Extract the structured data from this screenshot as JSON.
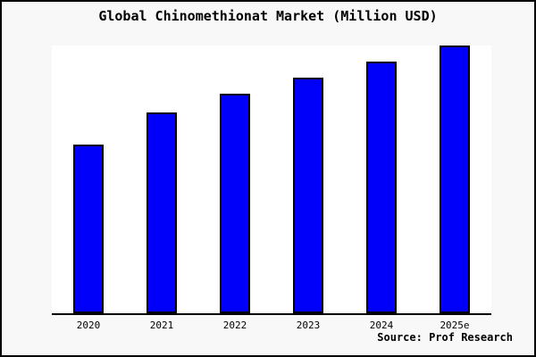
{
  "chart_data": {
    "type": "bar",
    "title": "Global Chinomethionat Market (Million USD)",
    "categories": [
      "2020",
      "2021",
      "2022",
      "2023",
      "2024",
      "2025e"
    ],
    "values": [
      63,
      75,
      82,
      88,
      94,
      100
    ],
    "units": "relative bar heights (no y-axis ticks or value labels shown)",
    "xlabel": "",
    "ylabel": "",
    "ylim": [
      0,
      100
    ],
    "grid": false,
    "legend": "none",
    "source": "Source: Prof Research",
    "colors": {
      "bar_fill": "#0000fa",
      "bar_edge": "#000000",
      "plot_background": "#ffffff",
      "page_background": "#f8f8f8",
      "frame_border": "#000000",
      "text": "#000000"
    }
  }
}
